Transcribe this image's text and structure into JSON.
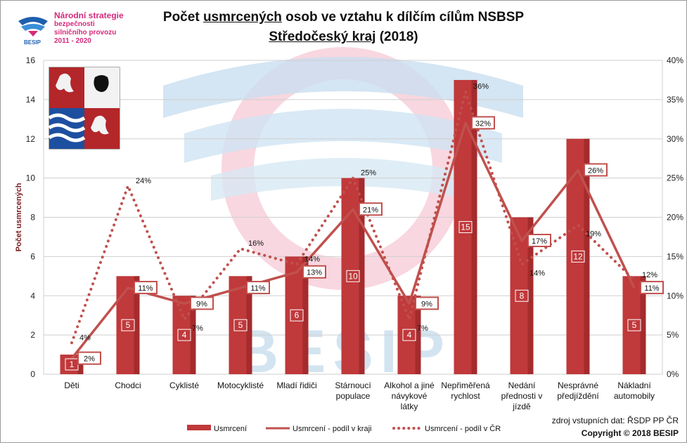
{
  "logo": {
    "line1": "Národní strategie",
    "line2": "bezpečnosti",
    "line3": "silničního provozu",
    "line4": "2011 - 2020",
    "badge": "BESIP",
    "watermark": "BESIP"
  },
  "header": {
    "title_part1": "Počet ",
    "title_underlined": "usmrcených",
    "title_part2": " osob ve vztahu k dílčím cílům NSBSP",
    "subtitle_underlined": "Středočeský kraj",
    "subtitle_rest": " (2018)"
  },
  "footer": {
    "source": "zdroj vstupních dat: ŘSDP PP ČR",
    "copyright": "Copyright © 2018  BESIP"
  },
  "chart_data": {
    "type": "bar",
    "categories": [
      [
        "Děti"
      ],
      [
        "Chodci"
      ],
      [
        "Cyklisté"
      ],
      [
        "Motocyklisté"
      ],
      [
        "Mladí řidiči"
      ],
      [
        "Stárnoucí",
        "populace"
      ],
      [
        "Alkohol a jiné",
        "návykové",
        "látky"
      ],
      [
        "Nepřiměřená",
        "rychlost"
      ],
      [
        "Nedání",
        "přednosti v",
        "jízdě"
      ],
      [
        "Nesprávné",
        "předjíždění"
      ],
      [
        "Nákladní",
        "automobily"
      ]
    ],
    "series": [
      {
        "name": "Usmrcení",
        "type": "bar",
        "axis": "left",
        "values": [
          1,
          5,
          4,
          5,
          6,
          10,
          4,
          15,
          8,
          12,
          5
        ],
        "color": "#c0393b"
      },
      {
        "name": "Usmrcení - podíl v kraji",
        "type": "line",
        "axis": "right",
        "values": [
          2,
          11,
          9,
          11,
          13,
          21,
          9,
          32,
          17,
          26,
          11
        ],
        "color": "#c0504d"
      },
      {
        "name": "Usmrcení - podíl v ČR",
        "type": "dotted-line",
        "axis": "right",
        "values": [
          4,
          24,
          7,
          16,
          14,
          25,
          7,
          36,
          14,
          19,
          12
        ],
        "color": "#c0504d"
      }
    ],
    "ylabel": "Počet usmrcených",
    "ylim": [
      0,
      16
    ],
    "yticks": [
      "0",
      "2",
      "4",
      "6",
      "8",
      "10",
      "12",
      "14",
      "16"
    ],
    "y2lim": [
      0,
      40
    ],
    "y2ticks": [
      "0%",
      "5%",
      "10%",
      "15%",
      "20%",
      "25%",
      "30%",
      "35%",
      "40%"
    ],
    "grid": true,
    "legend_position": "bottom"
  }
}
